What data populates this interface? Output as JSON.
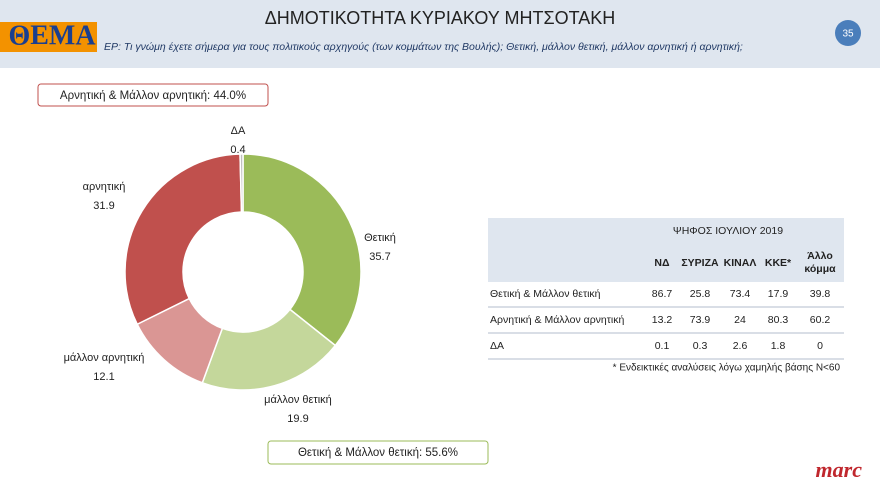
{
  "header": {
    "logo": "ΘΕΜΑ",
    "title": "ΔΗΜΟΤΙΚΟΤΗΤΑ ΚΥΡΙΑΚΟΥ ΜΗΤΣΟΤΑΚΗ",
    "question": "ΕΡ: Τι γνώμη έχετε σήμερα για τους πολιτικούς αρχηγούς (των κομμάτων της Βουλής); Θετική, μάλλον θετική, μάλλον αρνητική ή αρνητική;",
    "page_number": "35"
  },
  "chart_data": {
    "type": "donut",
    "categories": [
      "Θετική",
      "μάλλον θετική",
      "μάλλον αρνητική",
      "αρνητική",
      "ΔΑ"
    ],
    "values": [
      35.7,
      19.9,
      12.1,
      31.9,
      0.4
    ],
    "colors": [
      "#9bbb59",
      "#c4d79b",
      "#da9694",
      "#c0504d",
      "#bfbfbf"
    ]
  },
  "summary_boxes": [
    "Αρνητική & Μάλλον αρνητική: 44.0%",
    "Θετική & Μάλλον θετική: 55.6%"
  ],
  "table": {
    "title": "ΨΗΦΟΣ ΙΟΥΛΙΟΥ 2019",
    "columns": [
      "ΝΔ",
      "ΣΥΡΙΖΑ",
      "ΚΙΝΑΛ",
      "ΚΚΕ*",
      "Άλλο κόμμα"
    ],
    "rows": [
      [
        "Θετική & Μάλλον θετική",
        86.7,
        25.8,
        73.4,
        17.9,
        39.8
      ],
      [
        "Αρνητική & Μάλλον αρνητική",
        13.2,
        73.9,
        24,
        80.3,
        60.2
      ],
      [
        "ΔΑ",
        0.1,
        0.3,
        2.6,
        1.8,
        0
      ]
    ],
    "footnote": "* Ενδεικτικές αναλύσεις λόγω χαμηλής βάσης Ν<60"
  },
  "brand": "marc"
}
